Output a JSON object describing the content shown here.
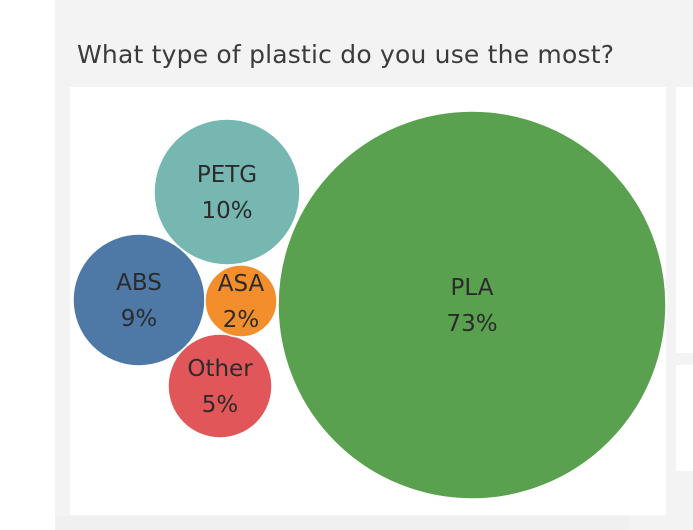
{
  "chart": {
    "title": "What type of plastic do you use the most?"
  },
  "chart_data": {
    "type": "bubble",
    "title": "What type of plastic do you use the most?",
    "xlabel": "",
    "ylabel": "",
    "legend": "none",
    "grid": false,
    "units": "%",
    "categories": [
      "PLA",
      "PETG",
      "ABS",
      "Other",
      "ASA"
    ],
    "values": [
      73,
      10,
      9,
      5,
      2
    ],
    "labels": [
      "73%",
      "10%",
      "9%",
      "5%",
      "2%"
    ],
    "colors": [
      "#59a14f",
      "#76b7b2",
      "#4e79a7",
      "#e15759",
      "#f28e2b"
    ]
  }
}
